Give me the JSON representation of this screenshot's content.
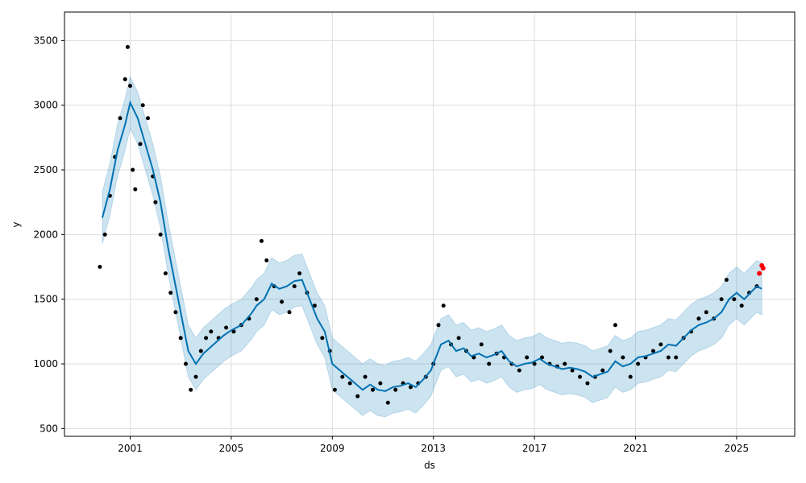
{
  "chart_data": {
    "type": "line",
    "title": "",
    "xlabel": "ds",
    "ylabel": "y",
    "xlim": [
      1998.4,
      2027.3
    ],
    "ylim": [
      440,
      3720
    ],
    "grid": true,
    "x_ticks": [
      2001,
      2005,
      2009,
      2013,
      2017,
      2021,
      2025
    ],
    "x_tick_labels": [
      "2001",
      "2005",
      "2009",
      "2013",
      "2017",
      "2021",
      "2025"
    ],
    "y_ticks": [
      500,
      1000,
      1500,
      2000,
      2500,
      3000,
      3500
    ],
    "y_tick_labels": [
      "500",
      "1000",
      "1500",
      "2000",
      "2500",
      "3000",
      "3500"
    ],
    "colors": {
      "observed": "#000000",
      "forecast_line": "#0072B2",
      "uncertainty_band": "#0072B2",
      "recent_points": "#ff0000"
    },
    "series": [
      {
        "kind": "forecast",
        "x": [
          1999.9,
          2000.2,
          2000.5,
          2000.8,
          2001.0,
          2001.3,
          2001.6,
          2001.9,
          2002.2,
          2002.5,
          2002.8,
          2003.1,
          2003.3,
          2003.6,
          2003.9,
          2004.3,
          2004.7,
          2005.0,
          2005.4,
          2005.8,
          2006.0,
          2006.3,
          2006.6,
          2006.9,
          2007.2,
          2007.5,
          2007.8,
          2008.1,
          2008.4,
          2008.7,
          2009.0,
          2009.3,
          2009.6,
          2009.9,
          2010.2,
          2010.5,
          2010.8,
          2011.1,
          2011.4,
          2011.7,
          2012.0,
          2012.3,
          2012.6,
          2012.9,
          2013.1,
          2013.3,
          2013.6,
          2013.9,
          2014.2,
          2014.5,
          2014.8,
          2015.1,
          2015.4,
          2015.7,
          2016.0,
          2016.3,
          2016.6,
          2016.9,
          2017.2,
          2017.5,
          2017.8,
          2018.1,
          2018.4,
          2018.7,
          2019.0,
          2019.3,
          2019.6,
          2019.9,
          2020.2,
          2020.5,
          2020.8,
          2021.1,
          2021.4,
          2021.7,
          2022.0,
          2022.3,
          2022.6,
          2022.9,
          2023.2,
          2023.5,
          2023.8,
          2024.1,
          2024.4,
          2024.7,
          2025.0,
          2025.3,
          2025.6,
          2025.8,
          2026.0
        ],
        "y": [
          2130,
          2350,
          2650,
          2850,
          3020,
          2900,
          2700,
          2500,
          2250,
          1900,
          1600,
          1300,
          1100,
          1000,
          1080,
          1150,
          1220,
          1260,
          1300,
          1390,
          1450,
          1500,
          1620,
          1580,
          1600,
          1640,
          1650,
          1500,
          1350,
          1250,
          1000,
          950,
          900,
          850,
          800,
          840,
          800,
          790,
          820,
          830,
          850,
          820,
          880,
          950,
          1050,
          1150,
          1180,
          1100,
          1120,
          1060,
          1080,
          1050,
          1070,
          1100,
          1020,
          980,
          1000,
          1010,
          1040,
          1000,
          980,
          960,
          970,
          960,
          940,
          900,
          920,
          940,
          1020,
          980,
          1000,
          1050,
          1060,
          1080,
          1100,
          1150,
          1140,
          1200,
          1260,
          1300,
          1320,
          1350,
          1400,
          1500,
          1550,
          1500,
          1560,
          1600,
          1580
        ],
        "band_upper": [
          2330,
          2550,
          2850,
          3050,
          3220,
          3100,
          2900,
          2700,
          2450,
          2100,
          1800,
          1500,
          1300,
          1200,
          1280,
          1350,
          1420,
          1460,
          1500,
          1590,
          1650,
          1700,
          1820,
          1780,
          1800,
          1840,
          1850,
          1700,
          1550,
          1450,
          1200,
          1150,
          1100,
          1050,
          1000,
          1040,
          1000,
          990,
          1020,
          1030,
          1050,
          1020,
          1080,
          1150,
          1250,
          1350,
          1380,
          1300,
          1320,
          1260,
          1280,
          1250,
          1270,
          1300,
          1220,
          1180,
          1200,
          1210,
          1240,
          1200,
          1180,
          1160,
          1170,
          1160,
          1140,
          1100,
          1120,
          1140,
          1220,
          1180,
          1200,
          1250,
          1260,
          1280,
          1300,
          1350,
          1340,
          1400,
          1460,
          1500,
          1520,
          1550,
          1600,
          1700,
          1750,
          1700,
          1760,
          1800,
          1780
        ],
        "band_lower": [
          1930,
          2150,
          2450,
          2650,
          2820,
          2700,
          2500,
          2300,
          2050,
          1700,
          1400,
          1100,
          900,
          800,
          880,
          950,
          1020,
          1060,
          1100,
          1190,
          1250,
          1300,
          1420,
          1380,
          1400,
          1440,
          1450,
          1300,
          1150,
          1050,
          800,
          750,
          700,
          650,
          600,
          640,
          600,
          590,
          620,
          630,
          650,
          620,
          680,
          750,
          850,
          950,
          980,
          900,
          920,
          860,
          880,
          850,
          870,
          900,
          820,
          780,
          800,
          810,
          840,
          800,
          780,
          760,
          770,
          760,
          740,
          700,
          720,
          740,
          820,
          780,
          800,
          850,
          860,
          880,
          900,
          950,
          940,
          1000,
          1060,
          1100,
          1120,
          1150,
          1200,
          1300,
          1350,
          1300,
          1360,
          1400,
          1380
        ]
      },
      {
        "kind": "observed",
        "x": [
          1999.8,
          2000.0,
          2000.2,
          2000.4,
          2000.6,
          2000.8,
          2000.9,
          2001.0,
          2001.1,
          2001.2,
          2001.4,
          2001.5,
          2001.7,
          2001.9,
          2002.0,
          2002.2,
          2002.4,
          2002.6,
          2002.8,
          2003.0,
          2003.2,
          2003.4,
          2003.6,
          2003.8,
          2004.0,
          2004.2,
          2004.5,
          2004.8,
          2005.1,
          2005.4,
          2005.7,
          2006.0,
          2006.2,
          2006.4,
          2006.7,
          2007.0,
          2007.3,
          2007.5,
          2007.7,
          2008.0,
          2008.3,
          2008.6,
          2008.9,
          2009.1,
          2009.4,
          2009.7,
          2010.0,
          2010.3,
          2010.6,
          2010.9,
          2011.2,
          2011.5,
          2011.8,
          2012.1,
          2012.4,
          2012.7,
          2013.0,
          2013.2,
          2013.4,
          2013.7,
          2014.0,
          2014.3,
          2014.6,
          2014.9,
          2015.2,
          2015.5,
          2015.8,
          2016.1,
          2016.4,
          2016.7,
          2017.0,
          2017.3,
          2017.6,
          2017.9,
          2018.2,
          2018.5,
          2018.8,
          2019.1,
          2019.4,
          2019.7,
          2020.0,
          2020.2,
          2020.5,
          2020.8,
          2021.1,
          2021.4,
          2021.7,
          2022.0,
          2022.3,
          2022.6,
          2022.9,
          2023.2,
          2023.5,
          2023.8,
          2024.1,
          2024.4,
          2024.6,
          2024.9,
          2025.2,
          2025.5,
          2025.8
        ],
        "y": [
          1750,
          2000,
          2300,
          2600,
          2900,
          3200,
          3450,
          3150,
          2500,
          2350,
          2700,
          3000,
          2900,
          2450,
          2250,
          2000,
          1700,
          1550,
          1400,
          1200,
          1000,
          800,
          900,
          1100,
          1200,
          1250,
          1200,
          1280,
          1250,
          1300,
          1350,
          1500,
          1950,
          1800,
          1600,
          1480,
          1400,
          1600,
          1700,
          1550,
          1450,
          1200,
          1100,
          800,
          900,
          850,
          750,
          900,
          800,
          850,
          700,
          800,
          850,
          820,
          850,
          900,
          1000,
          1300,
          1450,
          1150,
          1200,
          1100,
          1050,
          1150,
          1000,
          1080,
          1050,
          1000,
          950,
          1050,
          1000,
          1050,
          1000,
          980,
          1000,
          950,
          900,
          850,
          900,
          950,
          1100,
          1300,
          1050,
          900,
          1000,
          1050,
          1100,
          1150,
          1050,
          1050,
          1200,
          1250,
          1350,
          1400,
          1350,
          1500,
          1650,
          1500,
          1450,
          1550,
          1600
        ]
      },
      {
        "kind": "recent",
        "x": [
          2025.9,
          2026.0,
          2026.05
        ],
        "y": [
          1700,
          1760,
          1740
        ]
      }
    ]
  }
}
